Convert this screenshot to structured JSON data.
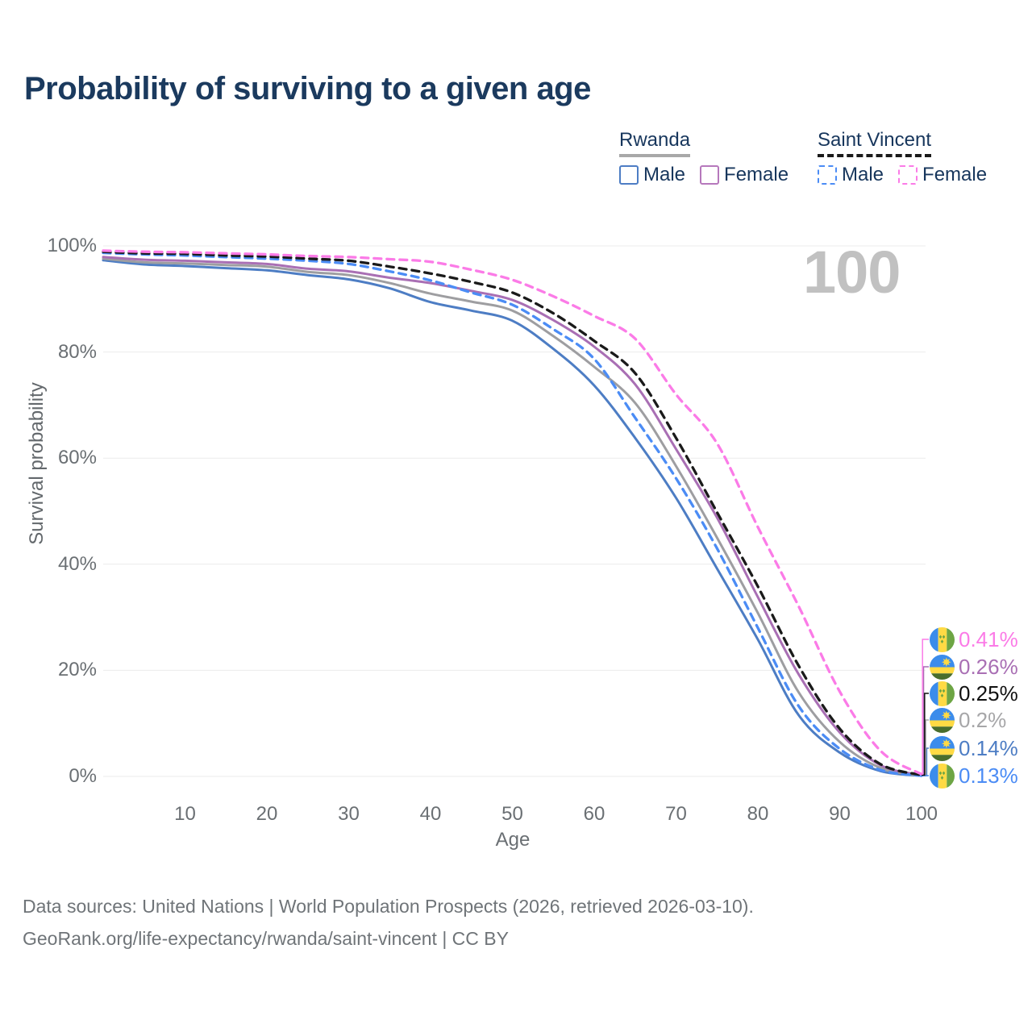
{
  "page": {
    "title": "Probability of surviving to a given age"
  },
  "legend": {
    "groups": [
      {
        "name": "Rwanda",
        "underline_style": "solid",
        "underline_color": "#a8a8a8",
        "items": [
          {
            "label": "Male",
            "color": "#4d7dc4",
            "dashed": false
          },
          {
            "label": "Female",
            "color": "#b678bc",
            "dashed": false
          }
        ]
      },
      {
        "name": "Saint Vincent",
        "underline_style": "dashed",
        "underline_color": "#1a1a1a",
        "items": [
          {
            "label": "Male",
            "color": "#4b8cf5",
            "dashed": true
          },
          {
            "label": "Female",
            "color": "#fb7be7",
            "dashed": true
          }
        ]
      }
    ]
  },
  "watermark": {
    "text": "100"
  },
  "chart_data": {
    "type": "line",
    "title": "Probability of surviving to a given age",
    "xlabel": "Age",
    "ylabel": "Survival probability",
    "xlim": [
      0,
      100
    ],
    "ylim": [
      0,
      100
    ],
    "grid": true,
    "legend_position": "top-right",
    "x": [
      0,
      5,
      10,
      15,
      20,
      25,
      30,
      35,
      40,
      45,
      50,
      55,
      60,
      65,
      70,
      75,
      80,
      85,
      90,
      95,
      100
    ],
    "xticks": [
      10,
      20,
      30,
      40,
      50,
      60,
      70,
      80,
      90,
      100
    ],
    "yticks": [
      {
        "v": 0,
        "label": "0%"
      },
      {
        "v": 20,
        "label": "20%"
      },
      {
        "v": 40,
        "label": "40%"
      },
      {
        "v": 60,
        "label": "60%"
      },
      {
        "v": 80,
        "label": "80%"
      },
      {
        "v": 100,
        "label": "100%"
      }
    ],
    "series": [
      {
        "id": "rwanda-male",
        "country": "Rwanda",
        "sex": "Male",
        "color": "#4d7dc4",
        "dashed": false,
        "values": [
          97.3,
          96.5,
          96.2,
          95.8,
          95.4,
          94.5,
          93.7,
          92.0,
          89.4,
          87.8,
          85.9,
          80.6,
          73.7,
          63.8,
          52.5,
          39.2,
          25.8,
          11.5,
          4.5,
          1.0,
          0.14
        ],
        "end_label": {
          "text": "0.14%",
          "color": "#4d7dc4",
          "flag": "rwanda",
          "row": 4
        }
      },
      {
        "id": "rwanda-total",
        "country": "Rwanda",
        "sex": "Both",
        "color": "#9e9ea1",
        "dashed": false,
        "values": [
          97.6,
          96.9,
          96.7,
          96.4,
          96.1,
          95.1,
          94.5,
          93.0,
          91.0,
          89.5,
          87.8,
          83.0,
          77.2,
          70.4,
          58.5,
          45.0,
          30.8,
          15.8,
          6.5,
          1.6,
          0.2
        ],
        "end_label": {
          "text": "0.2%",
          "color": "#a6a6a8",
          "flag": "rwanda",
          "row": 3
        }
      },
      {
        "id": "rwanda-female",
        "country": "Rwanda",
        "sex": "Female",
        "color": "#a96fb4",
        "dashed": false,
        "values": [
          97.9,
          97.4,
          97.2,
          96.9,
          96.6,
          95.7,
          95.2,
          94.0,
          93.0,
          91.5,
          89.8,
          86.0,
          81.0,
          73.9,
          61.7,
          48.8,
          33.8,
          19.2,
          8.3,
          2.1,
          0.26
        ],
        "end_label": {
          "text": "0.26%",
          "color": "#a96fb4",
          "flag": "rwanda",
          "row": 1
        }
      },
      {
        "id": "saint-vincent-male",
        "country": "Saint Vincent",
        "sex": "Male",
        "color": "#4b8cf5",
        "dashed": true,
        "values": [
          98.7,
          98.4,
          98.2,
          97.9,
          97.6,
          97.2,
          96.6,
          95.2,
          93.5,
          91.2,
          88.9,
          84.3,
          78.7,
          67.6,
          56.2,
          43.0,
          28.0,
          13.2,
          5.2,
          1.2,
          0.13
        ],
        "end_label": {
          "text": "0.13%",
          "color": "#4b8cf5",
          "flag": "saint-vincent",
          "row": 5
        }
      },
      {
        "id": "saint-vincent-total",
        "country": "Saint Vincent",
        "sex": "Both",
        "color": "#1a1a1a",
        "dashed": true,
        "values": [
          98.9,
          98.6,
          98.5,
          98.2,
          98.0,
          97.6,
          97.2,
          96.1,
          94.8,
          93.2,
          91.2,
          87.3,
          82.1,
          76.0,
          63.8,
          49.8,
          35.8,
          20.8,
          9.0,
          2.3,
          0.25
        ],
        "end_label": {
          "text": "0.25%",
          "color": "#111111",
          "flag": "saint-vincent",
          "row": 2
        }
      },
      {
        "id": "saint-vincent-female",
        "country": "Saint Vincent",
        "sex": "Female",
        "color": "#fb7be7",
        "dashed": true,
        "values": [
          99.1,
          98.9,
          98.8,
          98.6,
          98.4,
          98.1,
          97.9,
          97.5,
          97.0,
          95.5,
          93.6,
          90.5,
          86.8,
          82.5,
          72.0,
          62.8,
          47.0,
          32.0,
          16.0,
          4.8,
          0.41
        ],
        "end_label": {
          "text": "0.41%",
          "color": "#fb7be7",
          "flag": "saint-vincent",
          "row": 0
        }
      }
    ]
  },
  "footer": {
    "line1": "Data sources: United Nations | World Population Prospects (2026, retrieved 2026-03-10).",
    "line2": "GeoRank.org/life-expectancy/rwanda/saint-vincent | CC BY"
  }
}
